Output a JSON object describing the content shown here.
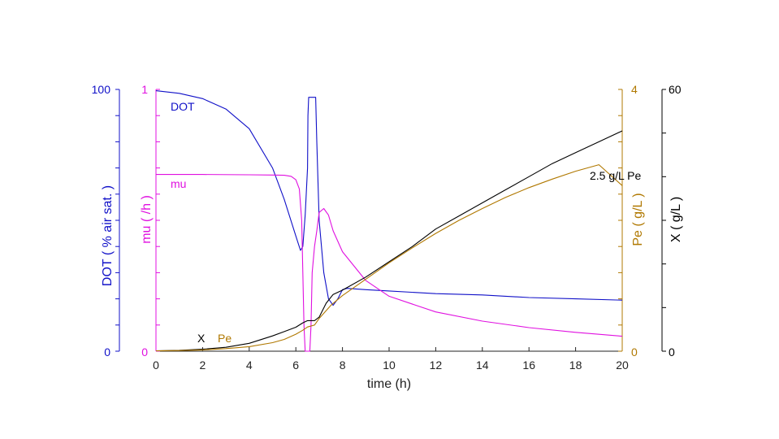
{
  "chart_data": {
    "type": "line",
    "xlabel": "time (h)",
    "xlim": [
      0,
      20
    ],
    "xticks": [
      0,
      2,
      4,
      6,
      8,
      10,
      12,
      14,
      16,
      18,
      20
    ],
    "axes": {
      "dot": {
        "label": "DOT ( % air sat. )",
        "lim": [
          0,
          100
        ],
        "tick_labels": [
          "0",
          "100"
        ],
        "color": "#1010c8",
        "side": "left-outer"
      },
      "mu": {
        "label": "mu ( /h )",
        "lim": [
          0,
          1
        ],
        "tick_labels": [
          "0",
          "1"
        ],
        "color": "#e010e0",
        "side": "left-inner"
      },
      "pe": {
        "label": "Pe ( g/L )",
        "lim": [
          0,
          4
        ],
        "tick_labels": [
          "0",
          "4"
        ],
        "color": "#b07800",
        "side": "right-inner"
      },
      "x": {
        "label": "X ( g/L )",
        "lim": [
          0,
          60
        ],
        "tick_labels": [
          "0",
          "60"
        ],
        "color": "#000000",
        "side": "right-outer"
      }
    },
    "series": [
      {
        "name": "DOT",
        "axis": "dot",
        "color": "#1010c8",
        "points": [
          [
            0,
            99.5
          ],
          [
            1,
            98.5
          ],
          [
            2,
            96.5
          ],
          [
            3,
            92.5
          ],
          [
            4,
            85
          ],
          [
            5,
            70
          ],
          [
            5.5,
            58
          ],
          [
            6,
            44
          ],
          [
            6.2,
            38.5
          ],
          [
            6.3,
            40
          ],
          [
            6.4,
            52
          ],
          [
            6.5,
            70
          ],
          [
            6.52,
            90
          ],
          [
            6.55,
            97
          ],
          [
            6.7,
            97
          ],
          [
            6.85,
            97
          ],
          [
            6.9,
            80
          ],
          [
            7,
            50
          ],
          [
            7.2,
            30
          ],
          [
            7.4,
            20
          ],
          [
            7.6,
            17.5
          ],
          [
            7.8,
            20
          ],
          [
            8,
            23.5
          ],
          [
            8.2,
            24
          ],
          [
            9,
            23.5
          ],
          [
            10,
            23
          ],
          [
            12,
            22
          ],
          [
            14,
            21.5
          ],
          [
            16,
            20.5
          ],
          [
            18,
            20
          ],
          [
            20,
            19.5
          ]
        ]
      },
      {
        "name": "mu",
        "axis": "mu",
        "color": "#e010e0",
        "points": [
          [
            0,
            0.675
          ],
          [
            2,
            0.675
          ],
          [
            4,
            0.674
          ],
          [
            5,
            0.673
          ],
          [
            5.5,
            0.672
          ],
          [
            5.8,
            0.668
          ],
          [
            6,
            0.655
          ],
          [
            6.15,
            0.62
          ],
          [
            6.25,
            0.5
          ],
          [
            6.3,
            0.3
          ],
          [
            6.35,
            0.1
          ],
          [
            6.4,
            0
          ],
          [
            6.6,
            0
          ],
          [
            6.65,
            0.1
          ],
          [
            6.7,
            0.3
          ],
          [
            6.8,
            0.4
          ],
          [
            6.9,
            0.46
          ],
          [
            7,
            0.53
          ],
          [
            7.2,
            0.545
          ],
          [
            7.4,
            0.52
          ],
          [
            7.6,
            0.46
          ],
          [
            8,
            0.38
          ],
          [
            9,
            0.27
          ],
          [
            10,
            0.21
          ],
          [
            12,
            0.15
          ],
          [
            14,
            0.115
          ],
          [
            16,
            0.09
          ],
          [
            18,
            0.072
          ],
          [
            20,
            0.057
          ]
        ]
      },
      {
        "name": "X",
        "axis": "x",
        "color": "#000000",
        "points": [
          [
            0,
            0.1
          ],
          [
            1,
            0.2
          ],
          [
            2,
            0.45
          ],
          [
            3,
            0.9
          ],
          [
            4,
            1.8
          ],
          [
            5,
            3.5
          ],
          [
            5.5,
            4.5
          ],
          [
            6,
            5.5
          ],
          [
            6.3,
            6.5
          ],
          [
            6.5,
            7
          ],
          [
            6.8,
            7
          ],
          [
            7,
            7.8
          ],
          [
            7.3,
            11
          ],
          [
            7.6,
            13
          ],
          [
            8,
            14
          ],
          [
            9,
            17
          ],
          [
            10,
            20.5
          ],
          [
            11,
            24
          ],
          [
            12,
            28
          ],
          [
            13,
            31
          ],
          [
            14,
            34
          ],
          [
            15,
            37
          ],
          [
            16,
            40
          ],
          [
            17,
            43
          ],
          [
            18,
            45.5
          ],
          [
            19,
            48
          ],
          [
            20,
            50.5
          ]
        ]
      },
      {
        "name": "Pe",
        "axis": "pe",
        "color": "#b07800",
        "points": [
          [
            0,
            0.005
          ],
          [
            1,
            0.01
          ],
          [
            2,
            0.02
          ],
          [
            3,
            0.04
          ],
          [
            4,
            0.07
          ],
          [
            5,
            0.13
          ],
          [
            5.5,
            0.18
          ],
          [
            6,
            0.26
          ],
          [
            6.3,
            0.32
          ],
          [
            6.5,
            0.37
          ],
          [
            6.8,
            0.4
          ],
          [
            7,
            0.5
          ],
          [
            7.5,
            0.7
          ],
          [
            8,
            0.85
          ],
          [
            9,
            1.1
          ],
          [
            10,
            1.35
          ],
          [
            11,
            1.58
          ],
          [
            12,
            1.8
          ],
          [
            13,
            2.0
          ],
          [
            14,
            2.18
          ],
          [
            15,
            2.35
          ],
          [
            16,
            2.5
          ],
          [
            17,
            2.63
          ],
          [
            18,
            2.75
          ],
          [
            19,
            2.85
          ],
          [
            20,
            2.53
          ]
        ]
      }
    ],
    "annotations": {
      "dot": "DOT",
      "mu": "mu",
      "x": "X",
      "pe": "Pe",
      "threshold": "2.5 g/L Pe"
    }
  }
}
